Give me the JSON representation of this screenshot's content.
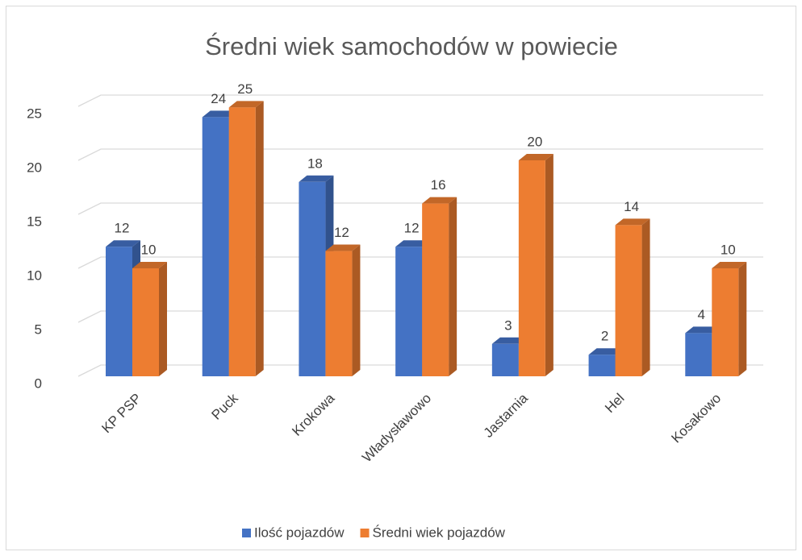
{
  "chart_data": {
    "type": "bar3d",
    "title": "Średni wiek samochodów w powiecie",
    "categories": [
      "KP PSP",
      "Puck",
      "Krokowa",
      "Władysławowo",
      "Jastarnia",
      "Hel",
      "Kosakowo"
    ],
    "series": [
      {
        "name": "Ilość pojazdów",
        "color": "#4472c4",
        "values": [
          12,
          24,
          18,
          12,
          3,
          2,
          4
        ]
      },
      {
        "name": "Średni wiek pojazdów",
        "color": "#ed7d31",
        "values": [
          10,
          24.9,
          11.6,
          16,
          20,
          14,
          10
        ],
        "value_labels": [
          "10",
          "25",
          "12",
          "16",
          "20",
          "14",
          "10"
        ]
      }
    ],
    "ylim": [
      0,
      25
    ],
    "yticks": [
      0,
      5,
      10,
      15,
      20,
      25
    ],
    "grid": true,
    "legend": "bottom"
  }
}
